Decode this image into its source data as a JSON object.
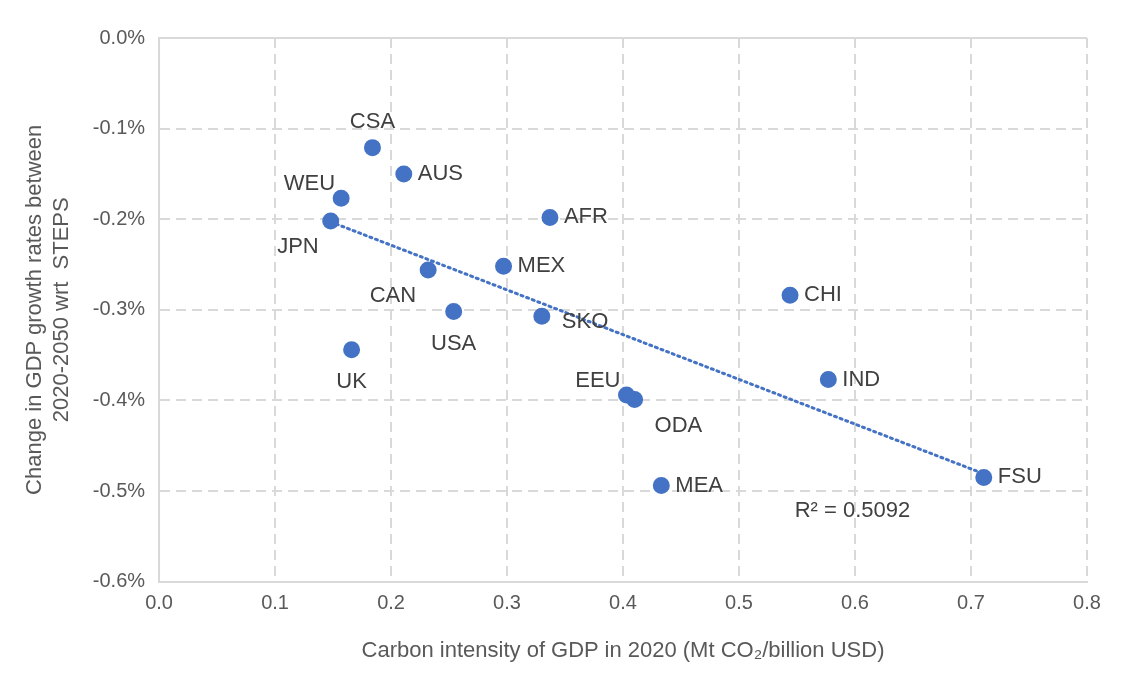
{
  "chart_data": {
    "type": "scatter",
    "xlabel": "Carbon intensity of GDP in 2020 (Mt CO₂/billion USD)",
    "ylabel": "Change in GDP growth rates between\n2020-2050 wrt  STEPS",
    "marker": "circle",
    "grid": true,
    "legend": false,
    "xlim": [
      0,
      0.8
    ],
    "xticks": [
      {
        "value": 0,
        "label": "0.0"
      },
      0.1,
      0.2,
      0.3,
      0.4,
      0.5,
      0.6,
      0.7,
      0.8
    ],
    "ylim": [
      -0.6,
      0
    ],
    "yticks": [
      {
        "value": 0,
        "label": "0.0%"
      },
      {
        "value": -0.1,
        "label": "-0.1%"
      },
      {
        "value": -0.2,
        "label": "-0.2%"
      },
      {
        "value": -0.3,
        "label": "-0.3%"
      },
      {
        "value": -0.4,
        "label": "-0.4%"
      },
      {
        "value": -0.5,
        "label": "-0.5%"
      },
      {
        "value": -0.6,
        "label": "-0.6%"
      }
    ],
    "series": [
      {
        "name": "CSA",
        "color": "#4472c4",
        "x": [
          0.184
        ],
        "values": [
          -0.121
        ]
      },
      {
        "name": "AUS",
        "color": "#4472c4",
        "x": [
          0.211
        ],
        "values": [
          -0.15
        ]
      },
      {
        "name": "WEU",
        "color": "#4472c4",
        "x": [
          0.157
        ],
        "values": [
          -0.177
        ]
      },
      {
        "name": "JPN",
        "color": "#4472c4",
        "x": [
          0.148
        ],
        "values": [
          -0.202
        ]
      },
      {
        "name": "CAN",
        "color": "#4472c4",
        "x": [
          0.232
        ],
        "values": [
          -0.256
        ]
      },
      {
        "name": "MEX",
        "color": "#4472c4",
        "x": [
          0.297
        ],
        "values": [
          -0.252
        ]
      },
      {
        "name": "AFR",
        "color": "#4472c4",
        "x": [
          0.337
        ],
        "values": [
          -0.198
        ]
      },
      {
        "name": "USA",
        "color": "#4472c4",
        "x": [
          0.254
        ],
        "values": [
          -0.302
        ]
      },
      {
        "name": "SKO",
        "color": "#4472c4",
        "x": [
          0.33
        ],
        "values": [
          -0.307
        ]
      },
      {
        "name": "UK",
        "color": "#4472c4",
        "x": [
          0.166
        ],
        "values": [
          -0.344
        ]
      },
      {
        "name": "CHI",
        "color": "#4472c4",
        "x": [
          0.544
        ],
        "values": [
          -0.284
        ]
      },
      {
        "name": "IND",
        "color": "#4472c4",
        "x": [
          0.577
        ],
        "values": [
          -0.377
        ]
      },
      {
        "name": "EEU",
        "color": "#4472c4",
        "x": [
          0.403
        ],
        "values": [
          -0.394
        ]
      },
      {
        "name": "ODA",
        "color": "#4472c4",
        "x": [
          0.41
        ],
        "values": [
          -0.399
        ]
      },
      {
        "name": "MEA",
        "color": "#4472c4",
        "x": [
          0.433
        ],
        "values": [
          -0.494
        ]
      },
      {
        "name": "FSU",
        "color": "#4472c4",
        "x": [
          0.711
        ],
        "values": [
          -0.485
        ]
      },
      {
        "type": "line",
        "color": "#4472c4",
        "line_style": "dotted",
        "marker": "none",
        "x": [
          0.148,
          0.711
        ],
        "values": [
          -0.203,
          -0.481
        ]
      }
    ],
    "annotations": [
      "R² = 0.5092"
    ]
  }
}
